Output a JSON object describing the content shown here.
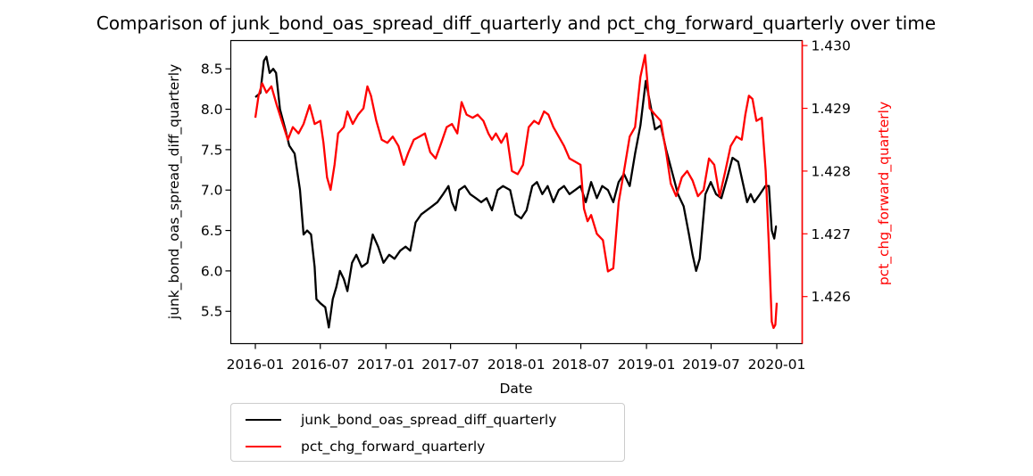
{
  "chart_data": {
    "type": "line",
    "title": "Comparison of junk_bond_oas_spread_diff_quarterly and pct_chg_forward_quarterly over time",
    "xlabel": "Date",
    "ylabel_left": "junk_bond_oas_spread_diff_quarterly",
    "ylabel_right": "pct_chg_forward_quarterly",
    "x_range": [
      "2016-01-01",
      "2020-01-01"
    ],
    "x_ticks": [
      "2016-01",
      "2016-07",
      "2017-01",
      "2017-07",
      "2018-01",
      "2018-07",
      "2019-01",
      "2019-07",
      "2020-01"
    ],
    "y_left_range": [
      5.1,
      8.85
    ],
    "y_left_ticks": [
      "5.5",
      "6.0",
      "6.5",
      "7.0",
      "7.5",
      "8.0",
      "8.5"
    ],
    "y_right_range": [
      1.42525,
      1.43008
    ],
    "y_right_ticks": [
      "1.426",
      "1.427",
      "1.428",
      "1.429",
      "1.430"
    ],
    "grid": false,
    "legend_position": "below",
    "colors": {
      "left": "#000000",
      "right": "#ff0000"
    },
    "series": [
      {
        "name": "junk_bond_oas_spread_diff_quarterly",
        "axis": "left",
        "color": "#000000",
        "points": [
          [
            "2016-01-01",
            8.15
          ],
          [
            "2016-01-15",
            8.2
          ],
          [
            "2016-01-25",
            8.6
          ],
          [
            "2016-02-01",
            8.65
          ],
          [
            "2016-02-10",
            8.45
          ],
          [
            "2016-02-20",
            8.5
          ],
          [
            "2016-02-28",
            8.45
          ],
          [
            "2016-03-10",
            8.0
          ],
          [
            "2016-03-25",
            7.75
          ],
          [
            "2016-04-05",
            7.55
          ],
          [
            "2016-04-20",
            7.45
          ],
          [
            "2016-05-05",
            7.0
          ],
          [
            "2016-05-15",
            6.45
          ],
          [
            "2016-05-25",
            6.5
          ],
          [
            "2016-06-05",
            6.45
          ],
          [
            "2016-06-15",
            6.05
          ],
          [
            "2016-06-20",
            5.65
          ],
          [
            "2016-07-01",
            5.6
          ],
          [
            "2016-07-15",
            5.55
          ],
          [
            "2016-07-25",
            5.3
          ],
          [
            "2016-08-05",
            5.65
          ],
          [
            "2016-08-15",
            5.8
          ],
          [
            "2016-08-25",
            6.0
          ],
          [
            "2016-09-05",
            5.9
          ],
          [
            "2016-09-15",
            5.75
          ],
          [
            "2016-09-28",
            6.1
          ],
          [
            "2016-10-10",
            6.2
          ],
          [
            "2016-10-25",
            6.05
          ],
          [
            "2016-11-10",
            6.1
          ],
          [
            "2016-11-25",
            6.45
          ],
          [
            "2016-12-10",
            6.3
          ],
          [
            "2016-12-25",
            6.1
          ],
          [
            "2017-01-10",
            6.2
          ],
          [
            "2017-01-25",
            6.15
          ],
          [
            "2017-02-10",
            6.25
          ],
          [
            "2017-02-25",
            6.3
          ],
          [
            "2017-03-10",
            6.25
          ],
          [
            "2017-03-25",
            6.6
          ],
          [
            "2017-04-10",
            6.7
          ],
          [
            "2017-04-25",
            6.75
          ],
          [
            "2017-05-10",
            6.8
          ],
          [
            "2017-05-25",
            6.85
          ],
          [
            "2017-06-10",
            6.95
          ],
          [
            "2017-06-25",
            7.05
          ],
          [
            "2017-07-05",
            6.85
          ],
          [
            "2017-07-15",
            6.75
          ],
          [
            "2017-07-25",
            7.0
          ],
          [
            "2017-08-10",
            7.05
          ],
          [
            "2017-08-25",
            6.95
          ],
          [
            "2017-09-10",
            6.9
          ],
          [
            "2017-09-25",
            6.85
          ],
          [
            "2017-10-10",
            6.9
          ],
          [
            "2017-10-25",
            6.75
          ],
          [
            "2017-11-10",
            7.0
          ],
          [
            "2017-11-25",
            7.05
          ],
          [
            "2017-12-15",
            7.0
          ],
          [
            "2017-12-30",
            6.7
          ],
          [
            "2018-01-15",
            6.65
          ],
          [
            "2018-01-30",
            6.75
          ],
          [
            "2018-02-15",
            7.05
          ],
          [
            "2018-02-28",
            7.1
          ],
          [
            "2018-03-15",
            6.95
          ],
          [
            "2018-03-30",
            7.05
          ],
          [
            "2018-04-15",
            6.85
          ],
          [
            "2018-04-30",
            7.0
          ],
          [
            "2018-05-15",
            7.05
          ],
          [
            "2018-05-30",
            6.95
          ],
          [
            "2018-06-15",
            7.0
          ],
          [
            "2018-06-30",
            7.05
          ],
          [
            "2018-07-15",
            6.85
          ],
          [
            "2018-07-30",
            7.1
          ],
          [
            "2018-08-15",
            6.9
          ],
          [
            "2018-08-30",
            7.05
          ],
          [
            "2018-09-15",
            7.0
          ],
          [
            "2018-09-30",
            6.85
          ],
          [
            "2018-10-15",
            7.1
          ],
          [
            "2018-10-30",
            7.2
          ],
          [
            "2018-11-15",
            7.05
          ],
          [
            "2018-11-30",
            7.45
          ],
          [
            "2018-12-15",
            7.8
          ],
          [
            "2018-12-30",
            8.35
          ],
          [
            "2019-01-10",
            8.1
          ],
          [
            "2019-01-25",
            7.75
          ],
          [
            "2019-02-10",
            7.8
          ],
          [
            "2019-02-25",
            7.5
          ],
          [
            "2019-03-15",
            7.2
          ],
          [
            "2019-03-30",
            6.95
          ],
          [
            "2019-04-15",
            6.8
          ],
          [
            "2019-04-30",
            6.45
          ],
          [
            "2019-05-10",
            6.2
          ],
          [
            "2019-05-20",
            6.0
          ],
          [
            "2019-05-30",
            6.15
          ],
          [
            "2019-06-15",
            6.95
          ],
          [
            "2019-06-30",
            7.1
          ],
          [
            "2019-07-15",
            6.95
          ],
          [
            "2019-07-30",
            6.9
          ],
          [
            "2019-08-15",
            7.15
          ],
          [
            "2019-08-30",
            7.4
          ],
          [
            "2019-09-15",
            7.35
          ],
          [
            "2019-09-30",
            7.05
          ],
          [
            "2019-10-10",
            6.85
          ],
          [
            "2019-10-20",
            6.95
          ],
          [
            "2019-10-30",
            6.85
          ],
          [
            "2019-11-15",
            6.95
          ],
          [
            "2019-11-30",
            7.05
          ],
          [
            "2019-12-10",
            7.05
          ],
          [
            "2019-12-18",
            6.5
          ],
          [
            "2019-12-25",
            6.4
          ],
          [
            "2019-12-30",
            6.55
          ],
          [
            "2020-01-01",
            6.55
          ]
        ]
      },
      {
        "name": "pct_chg_forward_quarterly",
        "axis": "right",
        "color": "#ff0000",
        "points": [
          [
            "2016-01-01",
            1.42885
          ],
          [
            "2016-01-10",
            1.4292
          ],
          [
            "2016-01-20",
            1.4294
          ],
          [
            "2016-02-01",
            1.42925
          ],
          [
            "2016-02-15",
            1.42935
          ],
          [
            "2016-03-01",
            1.42905
          ],
          [
            "2016-03-15",
            1.4288
          ],
          [
            "2016-04-01",
            1.4285
          ],
          [
            "2016-04-15",
            1.4287
          ],
          [
            "2016-05-01",
            1.4286
          ],
          [
            "2016-05-15",
            1.42875
          ],
          [
            "2016-06-01",
            1.42905
          ],
          [
            "2016-06-15",
            1.42875
          ],
          [
            "2016-07-01",
            1.4288
          ],
          [
            "2016-07-10",
            1.42845
          ],
          [
            "2016-07-20",
            1.4279
          ],
          [
            "2016-07-30",
            1.4277
          ],
          [
            "2016-08-10",
            1.4281
          ],
          [
            "2016-08-20",
            1.4286
          ],
          [
            "2016-09-05",
            1.4287
          ],
          [
            "2016-09-15",
            1.42895
          ],
          [
            "2016-09-30",
            1.42875
          ],
          [
            "2016-10-15",
            1.4289
          ],
          [
            "2016-10-30",
            1.429
          ],
          [
            "2016-11-10",
            1.42935
          ],
          [
            "2016-11-20",
            1.4292
          ],
          [
            "2016-12-05",
            1.4288
          ],
          [
            "2016-12-20",
            1.4285
          ],
          [
            "2017-01-05",
            1.42845
          ],
          [
            "2017-01-20",
            1.42855
          ],
          [
            "2017-02-05",
            1.4284
          ],
          [
            "2017-02-20",
            1.4281
          ],
          [
            "2017-03-05",
            1.4283
          ],
          [
            "2017-03-20",
            1.4285
          ],
          [
            "2017-04-05",
            1.42855
          ],
          [
            "2017-04-20",
            1.4286
          ],
          [
            "2017-05-05",
            1.4283
          ],
          [
            "2017-05-20",
            1.4282
          ],
          [
            "2017-06-05",
            1.42845
          ],
          [
            "2017-06-20",
            1.4287
          ],
          [
            "2017-07-05",
            1.42875
          ],
          [
            "2017-07-20",
            1.4286
          ],
          [
            "2017-08-01",
            1.4291
          ],
          [
            "2017-08-15",
            1.4289
          ],
          [
            "2017-09-01",
            1.42885
          ],
          [
            "2017-09-15",
            1.4289
          ],
          [
            "2017-10-01",
            1.4288
          ],
          [
            "2017-10-15",
            1.4286
          ],
          [
            "2017-10-25",
            1.4285
          ],
          [
            "2017-11-05",
            1.4286
          ],
          [
            "2017-11-20",
            1.42845
          ],
          [
            "2017-12-05",
            1.4286
          ],
          [
            "2017-12-20",
            1.428
          ],
          [
            "2018-01-05",
            1.42795
          ],
          [
            "2018-01-20",
            1.4281
          ],
          [
            "2018-02-05",
            1.4287
          ],
          [
            "2018-02-20",
            1.4288
          ],
          [
            "2018-03-05",
            1.42875
          ],
          [
            "2018-03-20",
            1.42895
          ],
          [
            "2018-04-01",
            1.4289
          ],
          [
            "2018-04-15",
            1.4287
          ],
          [
            "2018-04-30",
            1.42855
          ],
          [
            "2018-05-15",
            1.4284
          ],
          [
            "2018-05-30",
            1.4282
          ],
          [
            "2018-06-15",
            1.42815
          ],
          [
            "2018-06-30",
            1.4281
          ],
          [
            "2018-07-10",
            1.4274
          ],
          [
            "2018-07-20",
            1.4272
          ],
          [
            "2018-07-30",
            1.4273
          ],
          [
            "2018-08-15",
            1.427
          ],
          [
            "2018-09-01",
            1.4269
          ],
          [
            "2018-09-15",
            1.4264
          ],
          [
            "2018-09-30",
            1.42645
          ],
          [
            "2018-10-15",
            1.4275
          ],
          [
            "2018-10-30",
            1.428
          ],
          [
            "2018-11-15",
            1.42855
          ],
          [
            "2018-11-30",
            1.4287
          ],
          [
            "2018-12-15",
            1.4295
          ],
          [
            "2018-12-28",
            1.42985
          ],
          [
            "2019-01-10",
            1.429
          ],
          [
            "2019-01-25",
            1.4289
          ],
          [
            "2019-02-10",
            1.4288
          ],
          [
            "2019-02-25",
            1.4283
          ],
          [
            "2019-03-10",
            1.4278
          ],
          [
            "2019-03-25",
            1.4276
          ],
          [
            "2019-04-10",
            1.4279
          ],
          [
            "2019-04-25",
            1.428
          ],
          [
            "2019-05-10",
            1.42785
          ],
          [
            "2019-05-25",
            1.4276
          ],
          [
            "2019-06-10",
            1.4277
          ],
          [
            "2019-06-25",
            1.4282
          ],
          [
            "2019-07-10",
            1.4281
          ],
          [
            "2019-07-25",
            1.4276
          ],
          [
            "2019-08-10",
            1.428
          ],
          [
            "2019-08-25",
            1.4284
          ],
          [
            "2019-09-10",
            1.42855
          ],
          [
            "2019-09-25",
            1.4285
          ],
          [
            "2019-10-05",
            1.4289
          ],
          [
            "2019-10-15",
            1.4292
          ],
          [
            "2019-10-25",
            1.42915
          ],
          [
            "2019-11-05",
            1.4288
          ],
          [
            "2019-11-20",
            1.42885
          ],
          [
            "2019-12-01",
            1.428
          ],
          [
            "2019-12-10",
            1.4268
          ],
          [
            "2019-12-18",
            1.4256
          ],
          [
            "2019-12-23",
            1.4255
          ],
          [
            "2019-12-28",
            1.42555
          ],
          [
            "2020-01-01",
            1.4259
          ]
        ]
      }
    ]
  }
}
